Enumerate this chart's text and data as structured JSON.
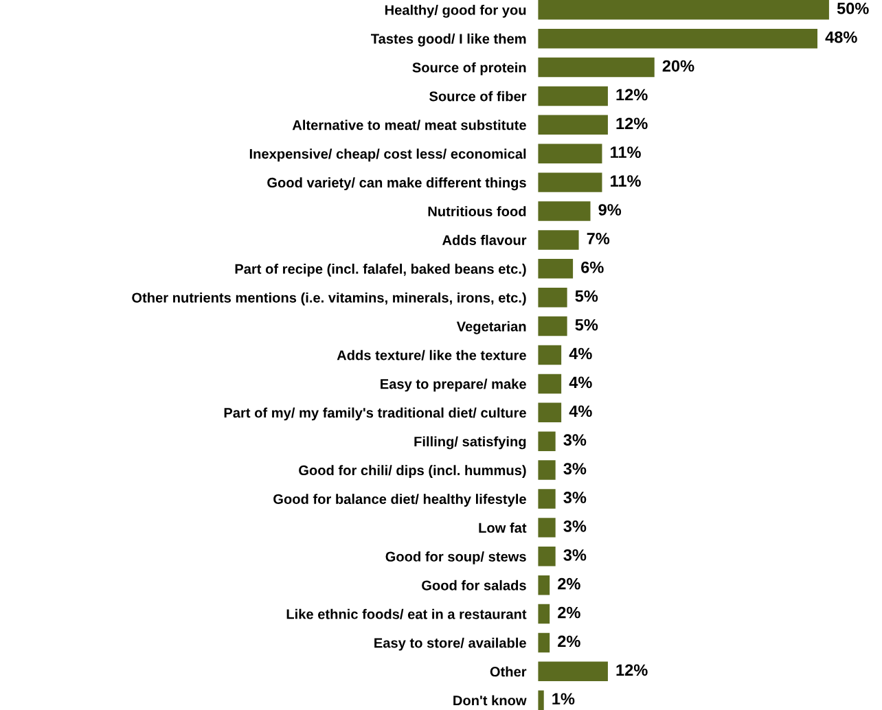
{
  "chart_data": {
    "type": "bar",
    "orientation": "horizontal",
    "categories": [
      "Healthy/ good for you",
      "Tastes good/ I like them",
      "Source of protein",
      "Source of fiber",
      "Alternative to meat/ meat substitute",
      "Inexpensive/ cheap/ cost less/ economical",
      "Good variety/ can make different things",
      "Nutritious food",
      "Adds flavour",
      "Part of recipe (incl. falafel, baked beans etc.)",
      "Other nutrients mentions (i.e. vitamins, minerals, irons, etc.)",
      "Vegetarian",
      "Adds texture/ like the texture",
      "Easy to prepare/ make",
      "Part of my/ my family's traditional diet/ culture",
      "Filling/ satisfying",
      "Good for chili/ dips (incl. hummus)",
      "Good for balance diet/ healthy lifestyle",
      "Low fat",
      "Good for soup/ stews",
      "Good for salads",
      "Like ethnic foods/ eat in a restaurant",
      "Easy to store/ available",
      "Other",
      "Don't know"
    ],
    "values": [
      50,
      48,
      20,
      12,
      12,
      11,
      11,
      9,
      7,
      6,
      5,
      5,
      4,
      4,
      4,
      3,
      3,
      3,
      3,
      3,
      2,
      2,
      2,
      12,
      1
    ],
    "value_labels": [
      "50%",
      "48%",
      "20%",
      "12%",
      "12%",
      "11%",
      "11%",
      "9%",
      "7%",
      "6%",
      "5%",
      "5%",
      "4%",
      "4%",
      "4%",
      "3%",
      "3%",
      "3%",
      "3%",
      "3%",
      "2%",
      "2%",
      "2%",
      "12%",
      "1%"
    ],
    "color": "#5b6b1f",
    "grid": false,
    "legend": false,
    "tick_labels": "y"
  }
}
